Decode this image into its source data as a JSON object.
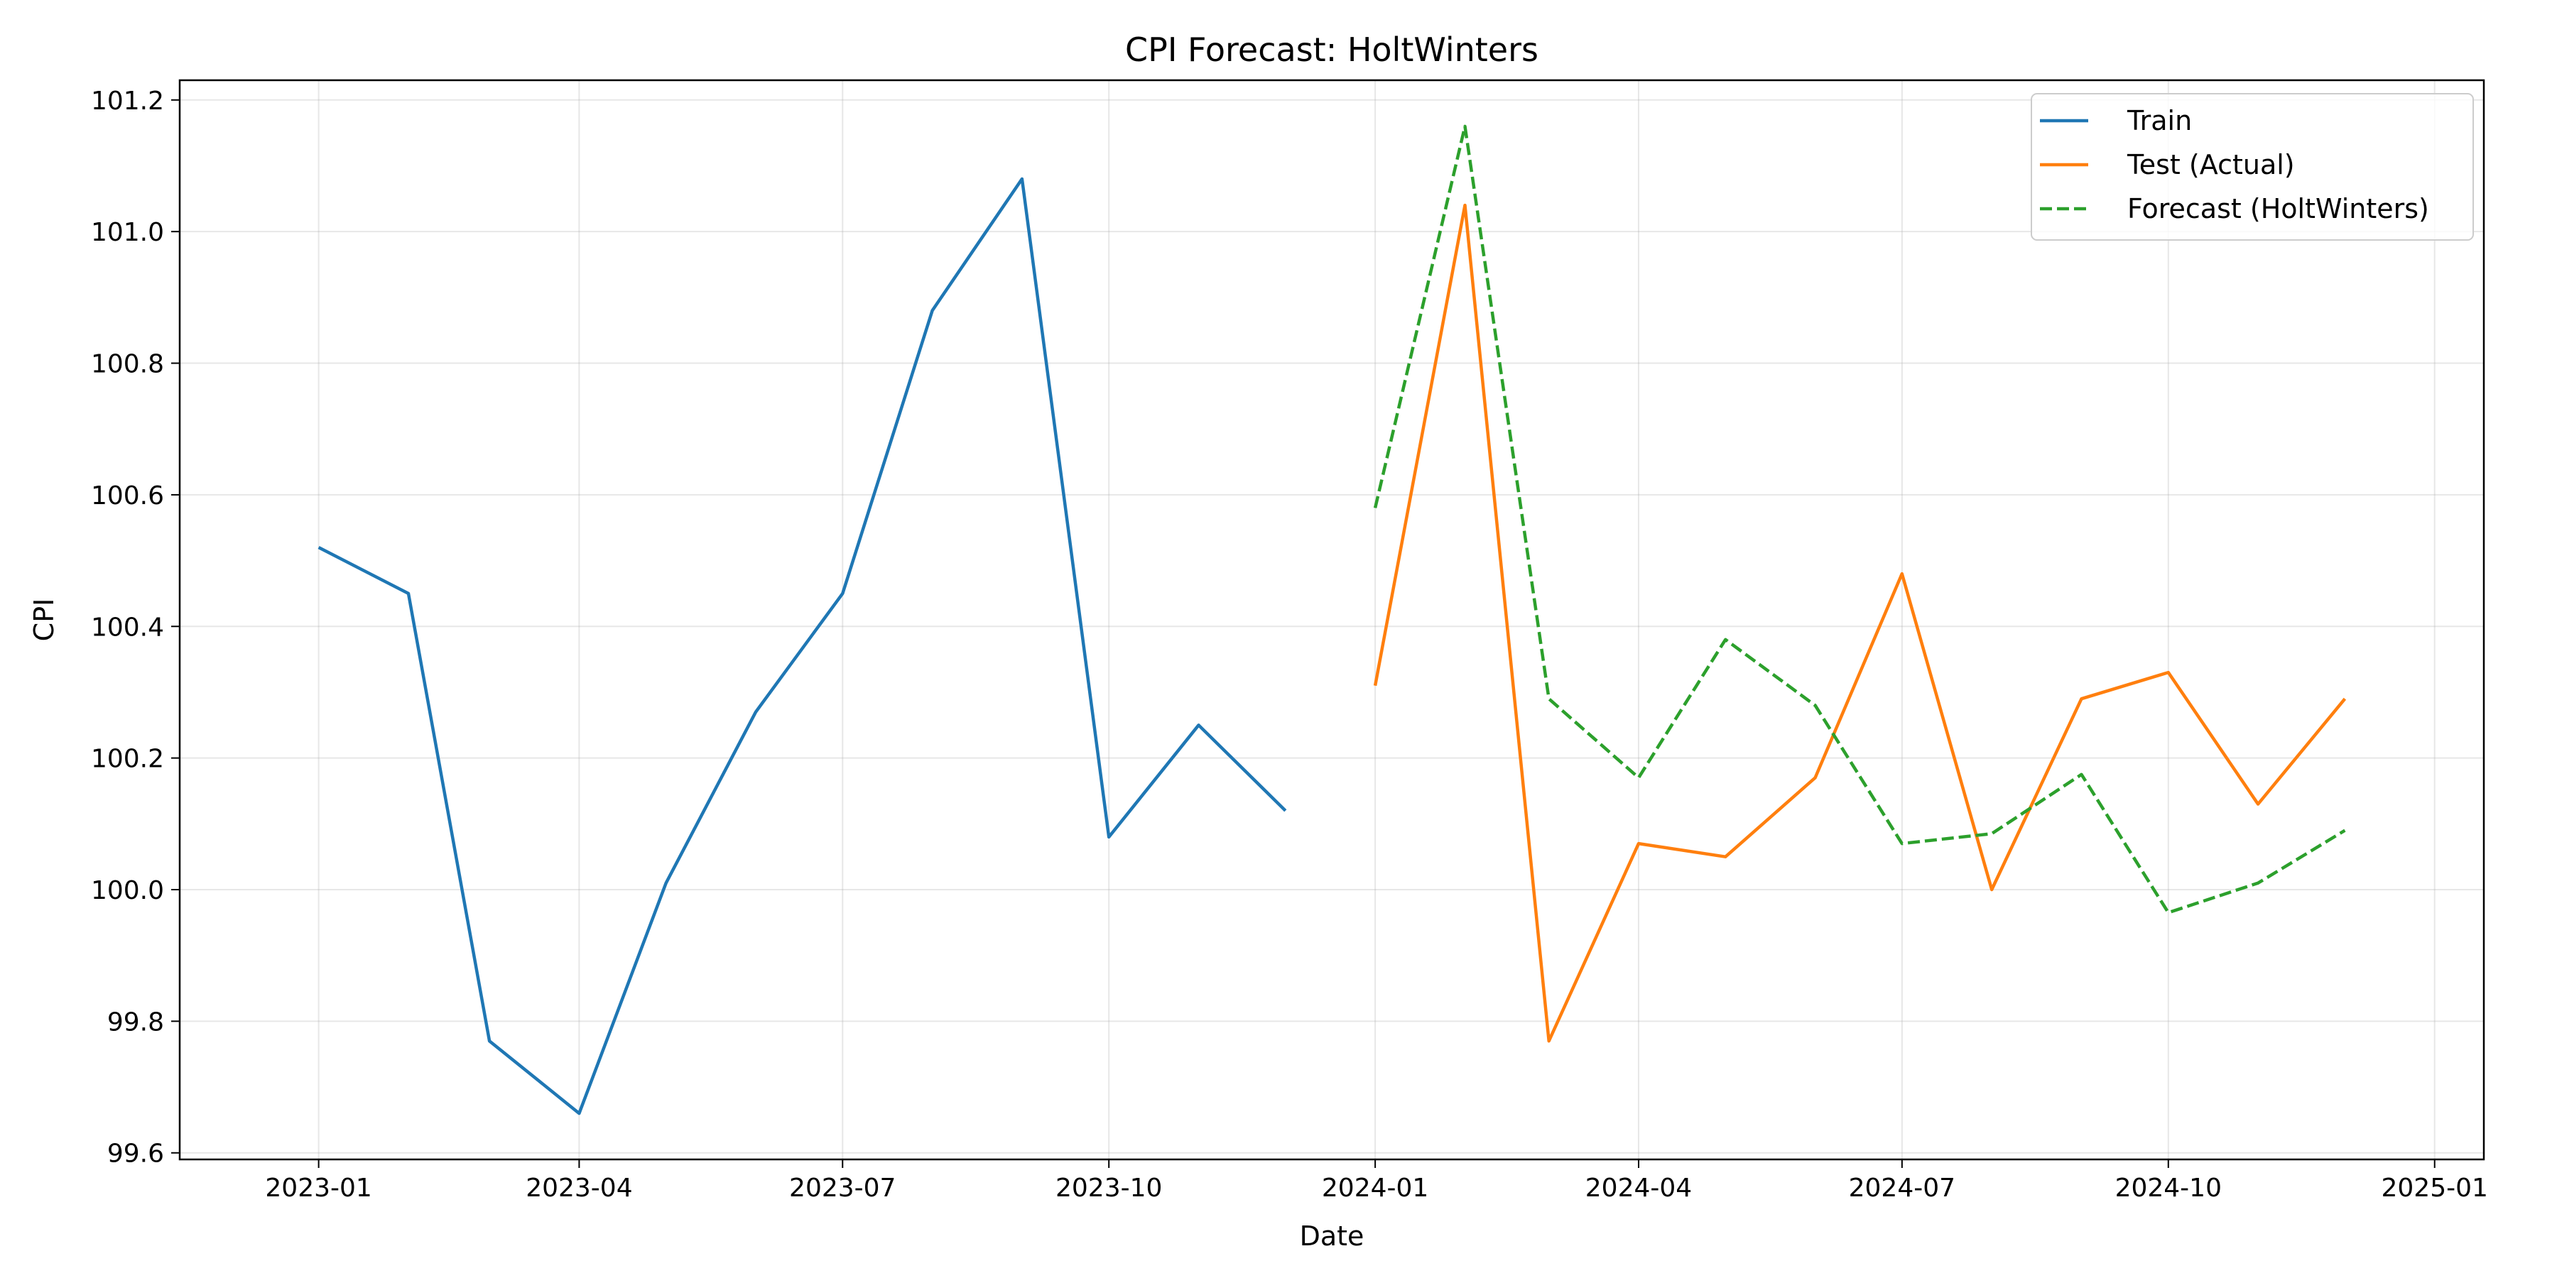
{
  "chart_data": {
    "type": "line",
    "title": "CPI Forecast: HoltWinters",
    "xlabel": "Date",
    "ylabel": "CPI",
    "xlim": [
      "2022-11-14",
      "2025-01-18"
    ],
    "ylim": [
      99.59,
      101.23
    ],
    "grid": true,
    "legend_position": "top-right",
    "x_ticks": [
      "2023-01",
      "2023-04",
      "2023-07",
      "2023-10",
      "2024-01",
      "2024-04",
      "2024-07",
      "2024-10",
      "2025-01"
    ],
    "y_ticks": [
      99.6,
      99.8,
      100.0,
      100.2,
      100.4,
      100.6,
      100.8,
      101.0,
      101.2
    ],
    "series": [
      {
        "name": "Train",
        "color": "#1f77b4",
        "dash": "solid",
        "x": [
          "2023-01-01",
          "2023-02-01",
          "2023-03-01",
          "2023-04-01",
          "2023-05-01",
          "2023-06-01",
          "2023-07-01",
          "2023-08-01",
          "2023-09-01",
          "2023-10-01",
          "2023-11-01",
          "2023-12-01"
        ],
        "values": [
          100.52,
          100.45,
          99.77,
          99.66,
          100.01,
          100.27,
          100.45,
          100.88,
          101.08,
          100.08,
          100.25,
          100.12
        ]
      },
      {
        "name": "Test (Actual)",
        "color": "#ff7f0e",
        "dash": "solid",
        "x": [
          "2024-01-01",
          "2024-02-01",
          "2024-03-01",
          "2024-04-01",
          "2024-05-01",
          "2024-06-01",
          "2024-07-01",
          "2024-08-01",
          "2024-09-01",
          "2024-10-01",
          "2024-11-01",
          "2024-12-01"
        ],
        "values": [
          100.31,
          101.04,
          99.77,
          100.07,
          100.05,
          100.17,
          100.48,
          100.0,
          100.29,
          100.33,
          100.13,
          100.29
        ]
      },
      {
        "name": "Forecast (HoltWinters)",
        "color": "#2ca02c",
        "dash": "dashed",
        "x": [
          "2024-01-01",
          "2024-02-01",
          "2024-03-01",
          "2024-04-01",
          "2024-05-01",
          "2024-06-01",
          "2024-07-01",
          "2024-08-01",
          "2024-09-01",
          "2024-10-01",
          "2024-11-01",
          "2024-12-01"
        ],
        "values": [
          100.58,
          101.16,
          100.29,
          100.17,
          100.38,
          100.28,
          100.07,
          100.085,
          100.175,
          99.965,
          100.01,
          100.09
        ]
      }
    ]
  }
}
